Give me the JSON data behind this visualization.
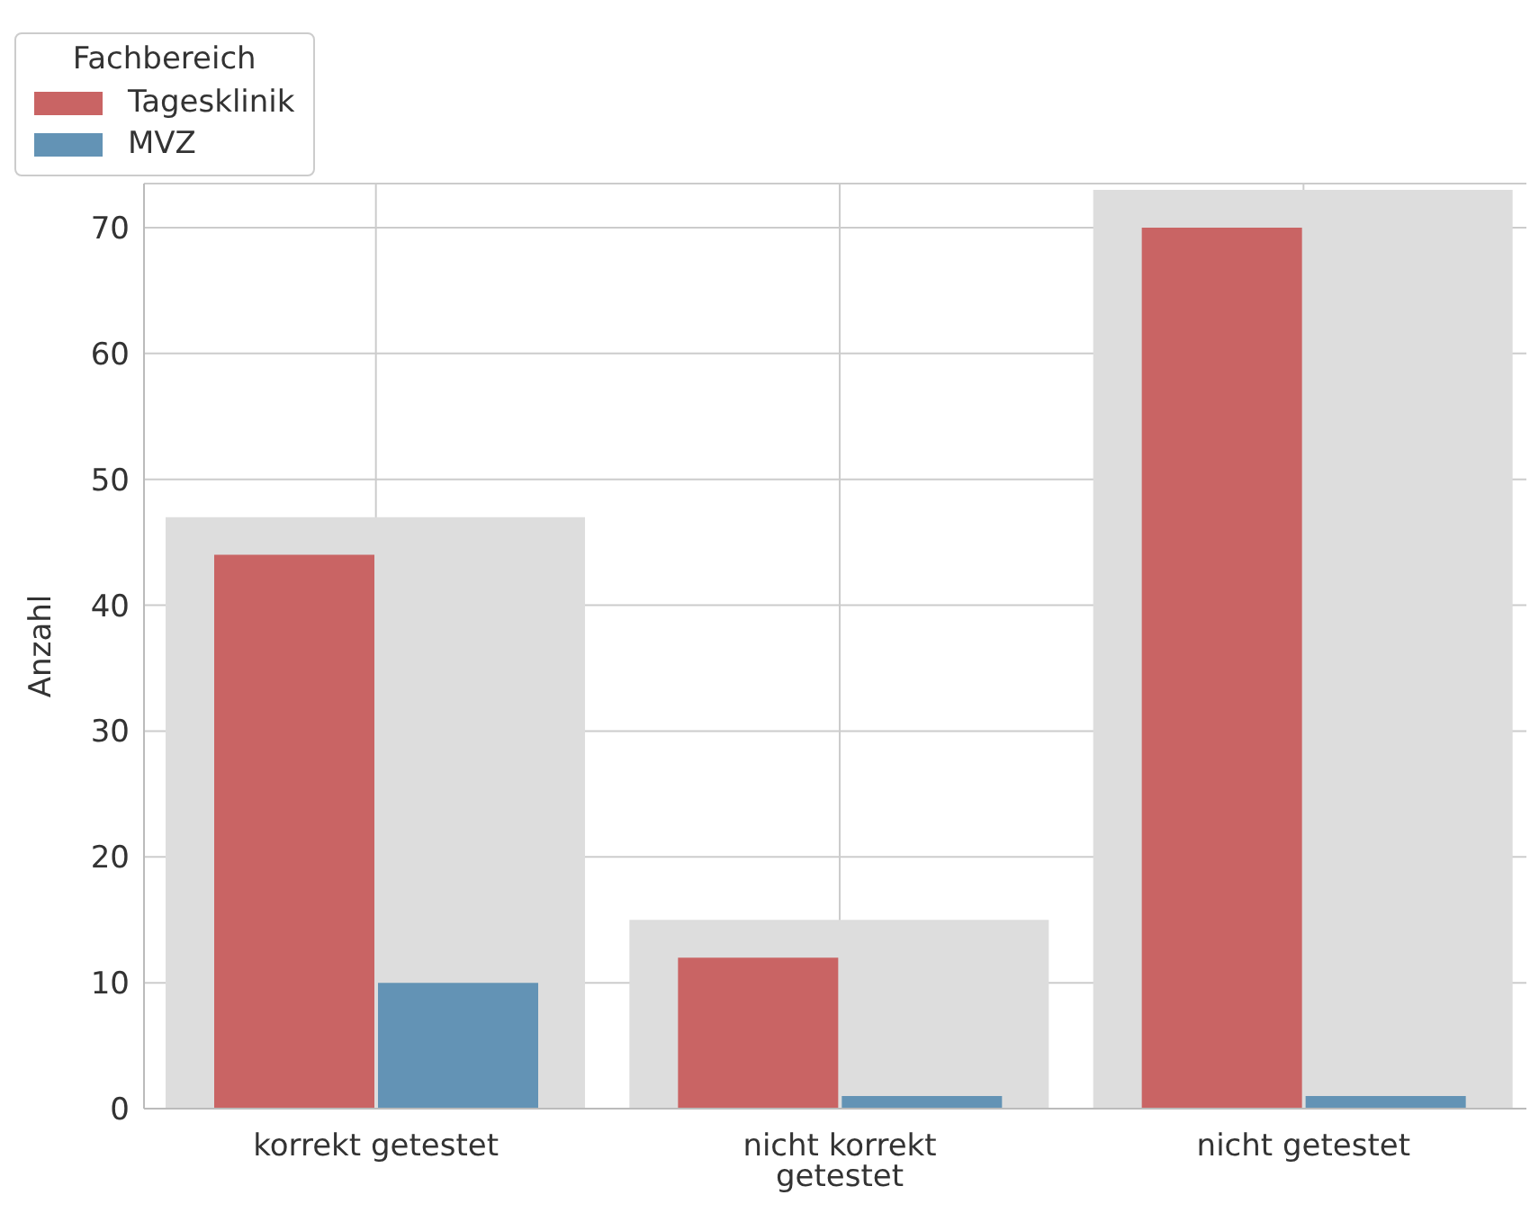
{
  "chart_data": {
    "type": "bar",
    "ylabel": "Anzahl",
    "legend_title": "Fachbereich",
    "categories": [
      "korrekt getestet",
      "nicht korrekt getestet",
      "nicht getestet"
    ],
    "series": [
      {
        "color": "#dddddd",
        "values": [
          47,
          15,
          73
        ]
      },
      {
        "name": "Tagesklinik",
        "color": "#c96464",
        "values": [
          44,
          12,
          70
        ]
      },
      {
        "name": "MVZ",
        "color": "#6393b5",
        "values": [
          10,
          1,
          1
        ]
      }
    ],
    "ylim": [
      0,
      73.5
    ],
    "yticks": [
      0,
      10,
      20,
      30,
      40,
      50,
      60,
      70
    ],
    "grid": true,
    "legend": "top"
  }
}
